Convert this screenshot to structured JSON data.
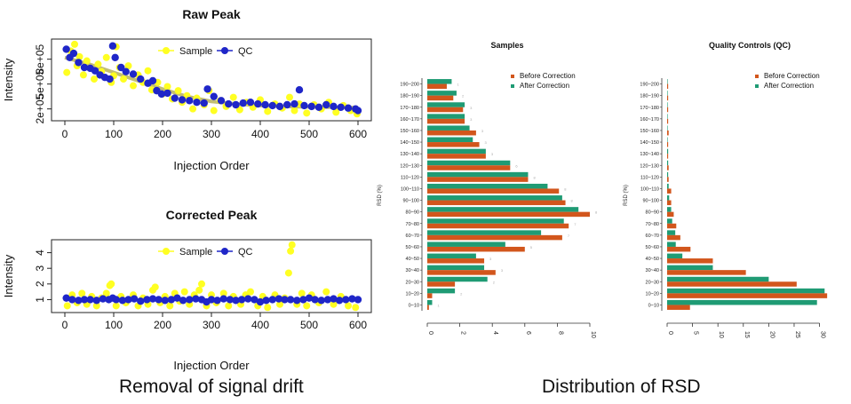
{
  "captions": {
    "left": "Removal of signal drift",
    "right": "Distribution of RSD"
  },
  "colors": {
    "sample": "#ffff22",
    "qc": "#1f26c8",
    "trend": "#b7b35a",
    "before": "#d2561c",
    "after": "#1f9b74"
  },
  "chart_data": [
    {
      "type": "scatter",
      "title": "Raw Peak",
      "xlabel": "Injection Order",
      "ylabel": "Intensity",
      "xlim": [
        0,
        600
      ],
      "ylim": [
        100000,
        1000000
      ],
      "xticks": [
        0,
        100,
        200,
        300,
        400,
        500,
        600
      ],
      "yticks": [
        {
          "value": 200000,
          "label": "2e+05"
        },
        {
          "value": 500000,
          "label": "5e+05"
        },
        {
          "value": 800000,
          "label": "8e+05"
        }
      ],
      "legend": {
        "position": "top",
        "entries": [
          {
            "name": "Sample",
            "color": "#ffff22"
          },
          {
            "name": "QC",
            "color": "#1f26c8"
          }
        ]
      },
      "trend": {
        "x": [
          0,
          50,
          100,
          150,
          200,
          250,
          300,
          350,
          400,
          450,
          500,
          550,
          600
        ],
        "y": [
          820000,
          740000,
          640000,
          540000,
          440000,
          350000,
          290000,
          260000,
          240000,
          230000,
          225000,
          220000,
          215000
        ]
      },
      "series": [
        {
          "name": "Sample",
          "x": [
            4,
            12,
            20,
            25,
            30,
            38,
            45,
            52,
            60,
            68,
            75,
            85,
            95,
            100,
            105,
            112,
            120,
            130,
            140,
            150,
            160,
            170,
            178,
            190,
            200,
            210,
            220,
            232,
            240,
            250,
            262,
            270,
            285,
            295,
            305,
            318,
            330,
            345,
            358,
            372,
            385,
            400,
            415,
            430,
            445,
            460,
            470,
            480,
            495,
            510,
            525,
            540,
            555,
            570,
            585,
            598
          ],
          "y": [
            640000,
            900000,
            980000,
            720000,
            830000,
            610000,
            780000,
            690000,
            560000,
            740000,
            650000,
            820000,
            520000,
            600000,
            950000,
            700000,
            560000,
            720000,
            480000,
            610000,
            520000,
            660000,
            430000,
            520000,
            380000,
            470000,
            320000,
            420000,
            280000,
            360000,
            200000,
            330000,
            250000,
            420000,
            180000,
            300000,
            230000,
            340000,
            190000,
            280000,
            220000,
            310000,
            170000,
            260000,
            210000,
            340000,
            180000,
            260000,
            150000,
            250000,
            200000,
            280000,
            160000,
            240000,
            180000,
            140000
          ]
        },
        {
          "name": "QC",
          "x": [
            3,
            10,
            18,
            28,
            40,
            52,
            62,
            72,
            82,
            92,
            98,
            103,
            115,
            125,
            140,
            155,
            170,
            180,
            188,
            198,
            210,
            225,
            240,
            255,
            270,
            285,
            292,
            305,
            320,
            335,
            350,
            365,
            380,
            395,
            410,
            425,
            440,
            455,
            470,
            480,
            490,
            505,
            520,
            535,
            550,
            565,
            580,
            595,
            600
          ],
          "y": [
            920000,
            820000,
            870000,
            760000,
            700000,
            690000,
            660000,
            610000,
            580000,
            560000,
            960000,
            820000,
            700000,
            650000,
            620000,
            560000,
            510000,
            540000,
            420000,
            380000,
            390000,
            330000,
            310000,
            300000,
            280000,
            270000,
            440000,
            350000,
            300000,
            260000,
            250000,
            270000,
            280000,
            260000,
            250000,
            240000,
            230000,
            250000,
            260000,
            430000,
            240000,
            230000,
            220000,
            250000,
            230000,
            220000,
            210000,
            200000,
            180000
          ]
        }
      ]
    },
    {
      "type": "scatter",
      "title": "Corrected Peak",
      "xlabel": "Injection Order",
      "ylabel": "Intensity",
      "xlim": [
        0,
        600
      ],
      "ylim": [
        0.4,
        4.6
      ],
      "xticks": [
        0,
        100,
        200,
        300,
        400,
        500,
        600
      ],
      "yticks": [
        {
          "value": 1,
          "label": "1"
        },
        {
          "value": 2,
          "label": "2"
        },
        {
          "value": 3,
          "label": "3"
        },
        {
          "value": 4,
          "label": "4"
        }
      ],
      "legend": {
        "position": "top",
        "entries": [
          {
            "name": "Sample",
            "color": "#ffff22"
          },
          {
            "name": "QC",
            "color": "#1f26c8"
          }
        ]
      },
      "series": [
        {
          "name": "Sample",
          "x": [
            5,
            15,
            25,
            35,
            45,
            55,
            65,
            75,
            85,
            92,
            95,
            105,
            115,
            125,
            140,
            150,
            160,
            170,
            180,
            185,
            195,
            205,
            215,
            225,
            235,
            245,
            255,
            265,
            275,
            280,
            290,
            300,
            310,
            325,
            335,
            345,
            360,
            370,
            380,
            395,
            405,
            415,
            430,
            440,
            450,
            458,
            462,
            465,
            475,
            485,
            495,
            505,
            520,
            535,
            550,
            565,
            580,
            595
          ],
          "y": [
            0.6,
            1.3,
            0.8,
            1.4,
            0.7,
            1.2,
            0.6,
            1.1,
            1.4,
            1.9,
            2.0,
            0.6,
            1.2,
            0.8,
            1.3,
            0.6,
            1.1,
            0.7,
            1.6,
            1.8,
            0.8,
            1.2,
            0.6,
            1.4,
            0.9,
            1.5,
            0.7,
            1.3,
            1.6,
            2.0,
            0.6,
            1.3,
            0.8,
            1.4,
            0.6,
            1.2,
            0.7,
            1.3,
            1.5,
            0.6,
            1.2,
            0.5,
            1.3,
            0.7,
            1.1,
            2.7,
            4.1,
            4.5,
            0.7,
            1.4,
            0.6,
            1.3,
            0.8,
            1.5,
            0.7,
            1.2,
            0.6,
            0.5
          ]
        },
        {
          "name": "QC",
          "x": [
            3,
            15,
            28,
            40,
            52,
            65,
            78,
            90,
            98,
            105,
            118,
            130,
            142,
            155,
            168,
            180,
            192,
            205,
            218,
            230,
            242,
            255,
            268,
            280,
            290,
            300,
            312,
            325,
            338,
            350,
            362,
            375,
            388,
            400,
            412,
            425,
            438,
            450,
            462,
            475,
            488,
            500,
            512,
            525,
            538,
            550,
            562,
            575,
            588,
            600
          ],
          "y": [
            1.1,
            1.0,
            0.95,
            1.0,
            1.0,
            0.95,
            1.05,
            1.0,
            1.1,
            1.0,
            0.95,
            1.0,
            1.05,
            0.9,
            1.0,
            1.05,
            1.0,
            0.95,
            1.0,
            1.1,
            0.95,
            1.0,
            1.05,
            1.0,
            0.85,
            1.0,
            0.95,
            1.05,
            1.0,
            0.95,
            1.0,
            1.05,
            1.0,
            0.85,
            0.95,
            1.0,
            1.05,
            1.0,
            1.0,
            0.95,
            1.0,
            1.1,
            1.0,
            0.95,
            1.0,
            1.05,
            0.95,
            1.0,
            1.05,
            1.0
          ]
        }
      ]
    },
    {
      "type": "bar",
      "orientation": "horizontal",
      "title": "Samples",
      "ylabel": "RSD (%)",
      "xlim": [
        0,
        10
      ],
      "xticks": [
        0,
        2,
        4,
        6,
        8,
        10
      ],
      "categories": [
        "0~10",
        "10~20",
        "20~30",
        "30~40",
        "40~50",
        "50~60",
        "60~70",
        "70~80",
        "80~90",
        "90~100",
        "100~110",
        "110~120",
        "120~130",
        "130~140",
        "140~150",
        "150~160",
        "160~170",
        "170~180",
        "180~190",
        "190~200"
      ],
      "legend": {
        "position": "top-right",
        "entries": [
          "Before Correction",
          "After Correction"
        ]
      },
      "series": [
        {
          "name": "Before Correction",
          "values": [
            0.1,
            0.3,
            1.7,
            4.2,
            3.5,
            6.0,
            8.3,
            8.7,
            10.0,
            8.5,
            8.1,
            6.2,
            5.1,
            3.6,
            3.2,
            3.0,
            2.3,
            2.2,
            1.6,
            1.2
          ]
        },
        {
          "name": "After Correction",
          "values": [
            0.3,
            1.7,
            3.7,
            3.5,
            3.0,
            4.8,
            7.0,
            8.4,
            9.3,
            8.3,
            7.4,
            6.2,
            5.1,
            3.6,
            2.8,
            2.6,
            2.3,
            2.3,
            1.8,
            1.5
          ]
        }
      ],
      "annotations_faint": [
        "1",
        "2",
        "2",
        "3",
        "3",
        "5",
        "7",
        "7",
        "8",
        "8",
        "8",
        "8",
        "6",
        "3",
        "3",
        "3",
        "3",
        "3",
        "2",
        "1"
      ]
    },
    {
      "type": "bar",
      "orientation": "horizontal",
      "title": "Quality Controls (QC)",
      "ylabel": "RSD (%)",
      "xlim": [
        0,
        32
      ],
      "xticks": [
        0,
        5,
        10,
        15,
        20,
        25,
        30
      ],
      "categories": [
        "0~10",
        "10~20",
        "20~30",
        "30~40",
        "40~50",
        "50~60",
        "60~70",
        "70~80",
        "80~90",
        "90~100",
        "100~110",
        "110~120",
        "120~130",
        "130~140",
        "140~150",
        "150~160",
        "160~170",
        "170~180",
        "180~190",
        "190~200"
      ],
      "legend": {
        "position": "top-right",
        "entries": [
          "Before Correction",
          "After Correction"
        ]
      },
      "series": [
        {
          "name": "Before Correction",
          "values": [
            4.5,
            31.5,
            25.5,
            15.5,
            9.0,
            4.6,
            2.6,
            1.8,
            1.3,
            0.8,
            0.8,
            0.3,
            0.3,
            0.2,
            0.2,
            0.3,
            0.2,
            0.2,
            0.2,
            0.2
          ]
        },
        {
          "name": "After Correction",
          "values": [
            29.5,
            31.0,
            20.0,
            9.0,
            3.0,
            1.7,
            1.6,
            1.0,
            0.8,
            0.4,
            0.3,
            0.2,
            0.2,
            0.2,
            0.1,
            0.1,
            0.1,
            0.1,
            0.1,
            0.1
          ]
        }
      ]
    }
  ]
}
